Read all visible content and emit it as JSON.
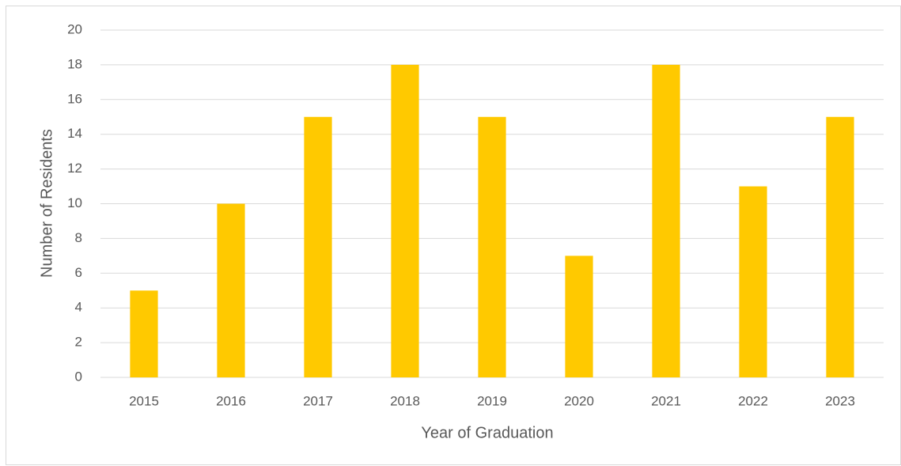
{
  "chart_data": {
    "type": "bar",
    "x_label": "Year of Graduation",
    "y_label": "Number of Residents",
    "categories": [
      "2015",
      "2016",
      "2017",
      "2018",
      "2019",
      "2020",
      "2021",
      "2022",
      "2023"
    ],
    "values": [
      5,
      10,
      15,
      18,
      15,
      7,
      18,
      11,
      15
    ],
    "color": "#ffc900",
    "ylim": [
      0,
      20
    ],
    "yticks": [
      0,
      2,
      4,
      6,
      8,
      10,
      12,
      14,
      16,
      18,
      20
    ],
    "grid": true
  }
}
